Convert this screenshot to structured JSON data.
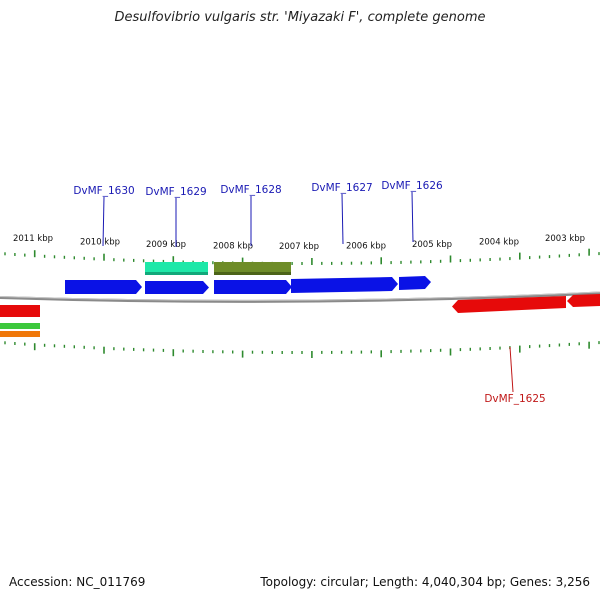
{
  "title": "Desulfovibrio vulgaris str. 'Miyazaki F', complete genome",
  "footer": {
    "accession": "Accession: NC_011769",
    "summary": "Topology: circular; Length: 4,040,304 bp; Genes: 3,256"
  },
  "colors": {
    "forward_gene": "#0a12e6",
    "reverse_gene": "#e60a0a",
    "feature_teal": "#1ee8a8",
    "feature_olive": "#6e8c28",
    "feature_green": "#3cc83c",
    "feature_orange": "#f0780a",
    "tick": "#2e8a2e",
    "backbone": "#808080",
    "forward_label": "#1a1ab4",
    "reverse_label": "#c01818"
  },
  "ruler_labels": [
    "2011 kbp",
    "2010 kbp",
    "2009 kbp",
    "2008 kbp",
    "2007 kbp",
    "2006 kbp",
    "2005 kbp",
    "2004 kbp",
    "2003 kbp"
  ],
  "gene_labels": [
    {
      "name": "DvMF_1630",
      "strand": "forward"
    },
    {
      "name": "DvMF_1629",
      "strand": "forward"
    },
    {
      "name": "DvMF_1628",
      "strand": "forward"
    },
    {
      "name": "DvMF_1627",
      "strand": "forward"
    },
    {
      "name": "DvMF_1626",
      "strand": "forward"
    },
    {
      "name": "DvMF_1625",
      "strand": "reverse"
    }
  ]
}
